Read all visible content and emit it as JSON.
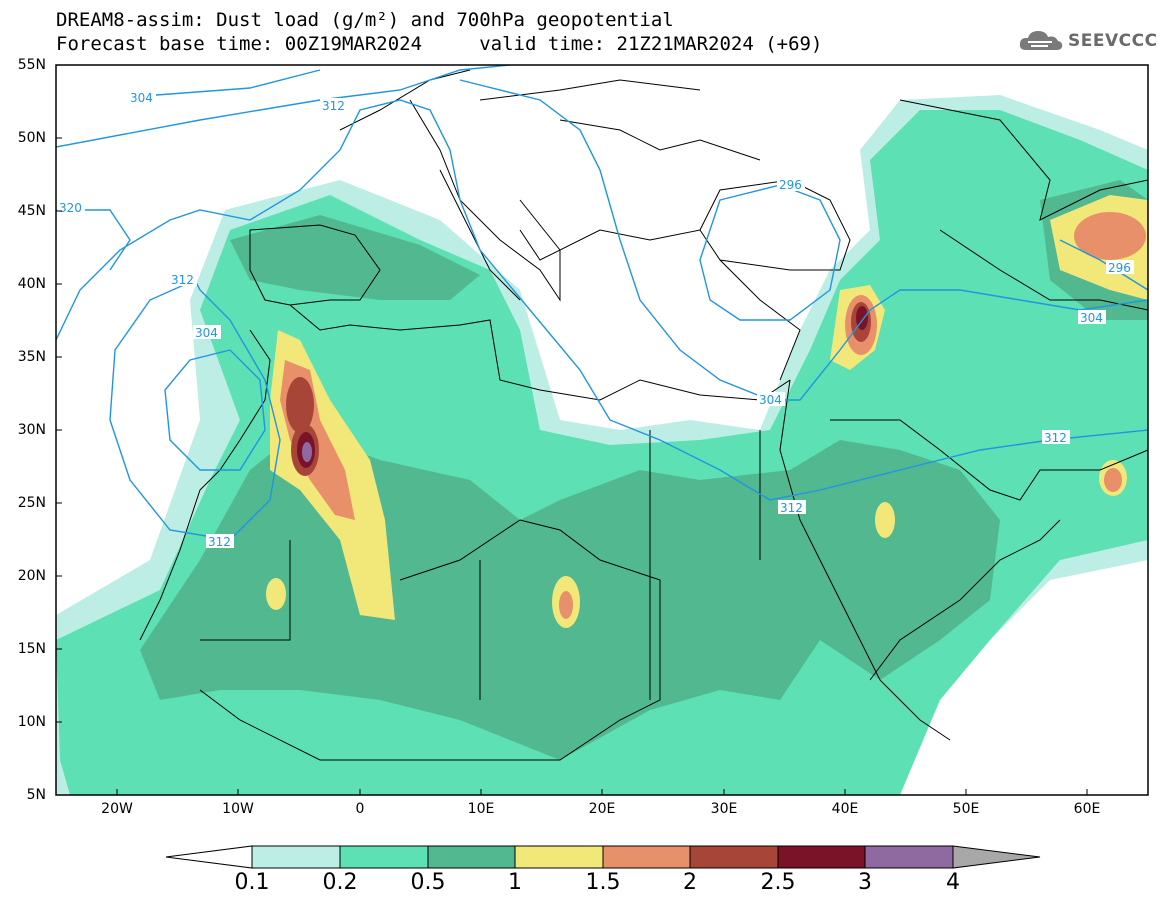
{
  "title": {
    "line1": "DREAM8-assim: Dust load (g/m²) and 700hPa geopotential",
    "line2": "Forecast base time: 00Z19MAR2024     valid time: 21Z21MAR2024 (+69)"
  },
  "logo": {
    "text": "SEEVCCC",
    "icon": "cloud-logo-icon"
  },
  "axes": {
    "lat_labels": [
      "55N",
      "50N",
      "45N",
      "40N",
      "35N",
      "30N",
      "25N",
      "20N",
      "15N",
      "10N",
      "5N"
    ],
    "lon_labels": [
      "20W",
      "10W",
      "0",
      "10E",
      "20E",
      "30E",
      "40E",
      "50E",
      "60E"
    ]
  },
  "contours": {
    "labels": [
      "304",
      "312",
      "296",
      "320",
      "312",
      "304",
      "312",
      "312",
      "296",
      "304",
      "304",
      "312",
      "312"
    ]
  },
  "colorbar": {
    "labels": [
      "0.1",
      "0.2",
      "0.5",
      "1",
      "1.5",
      "2",
      "2.5",
      "3",
      "4"
    ],
    "colors": [
      "#ffffff",
      "#bdeee6",
      "#5ce0b4",
      "#52b890",
      "#f2e779",
      "#e8906a",
      "#a74638",
      "#7a1328",
      "#8e6aa0",
      "#a8a8a8"
    ]
  },
  "colors": {
    "land_outline": "#000000",
    "contour": "#2196e0",
    "dust_low": "#bdeee6",
    "dust_mid": "#5ce0b4",
    "dust_high": "#52b890"
  }
}
